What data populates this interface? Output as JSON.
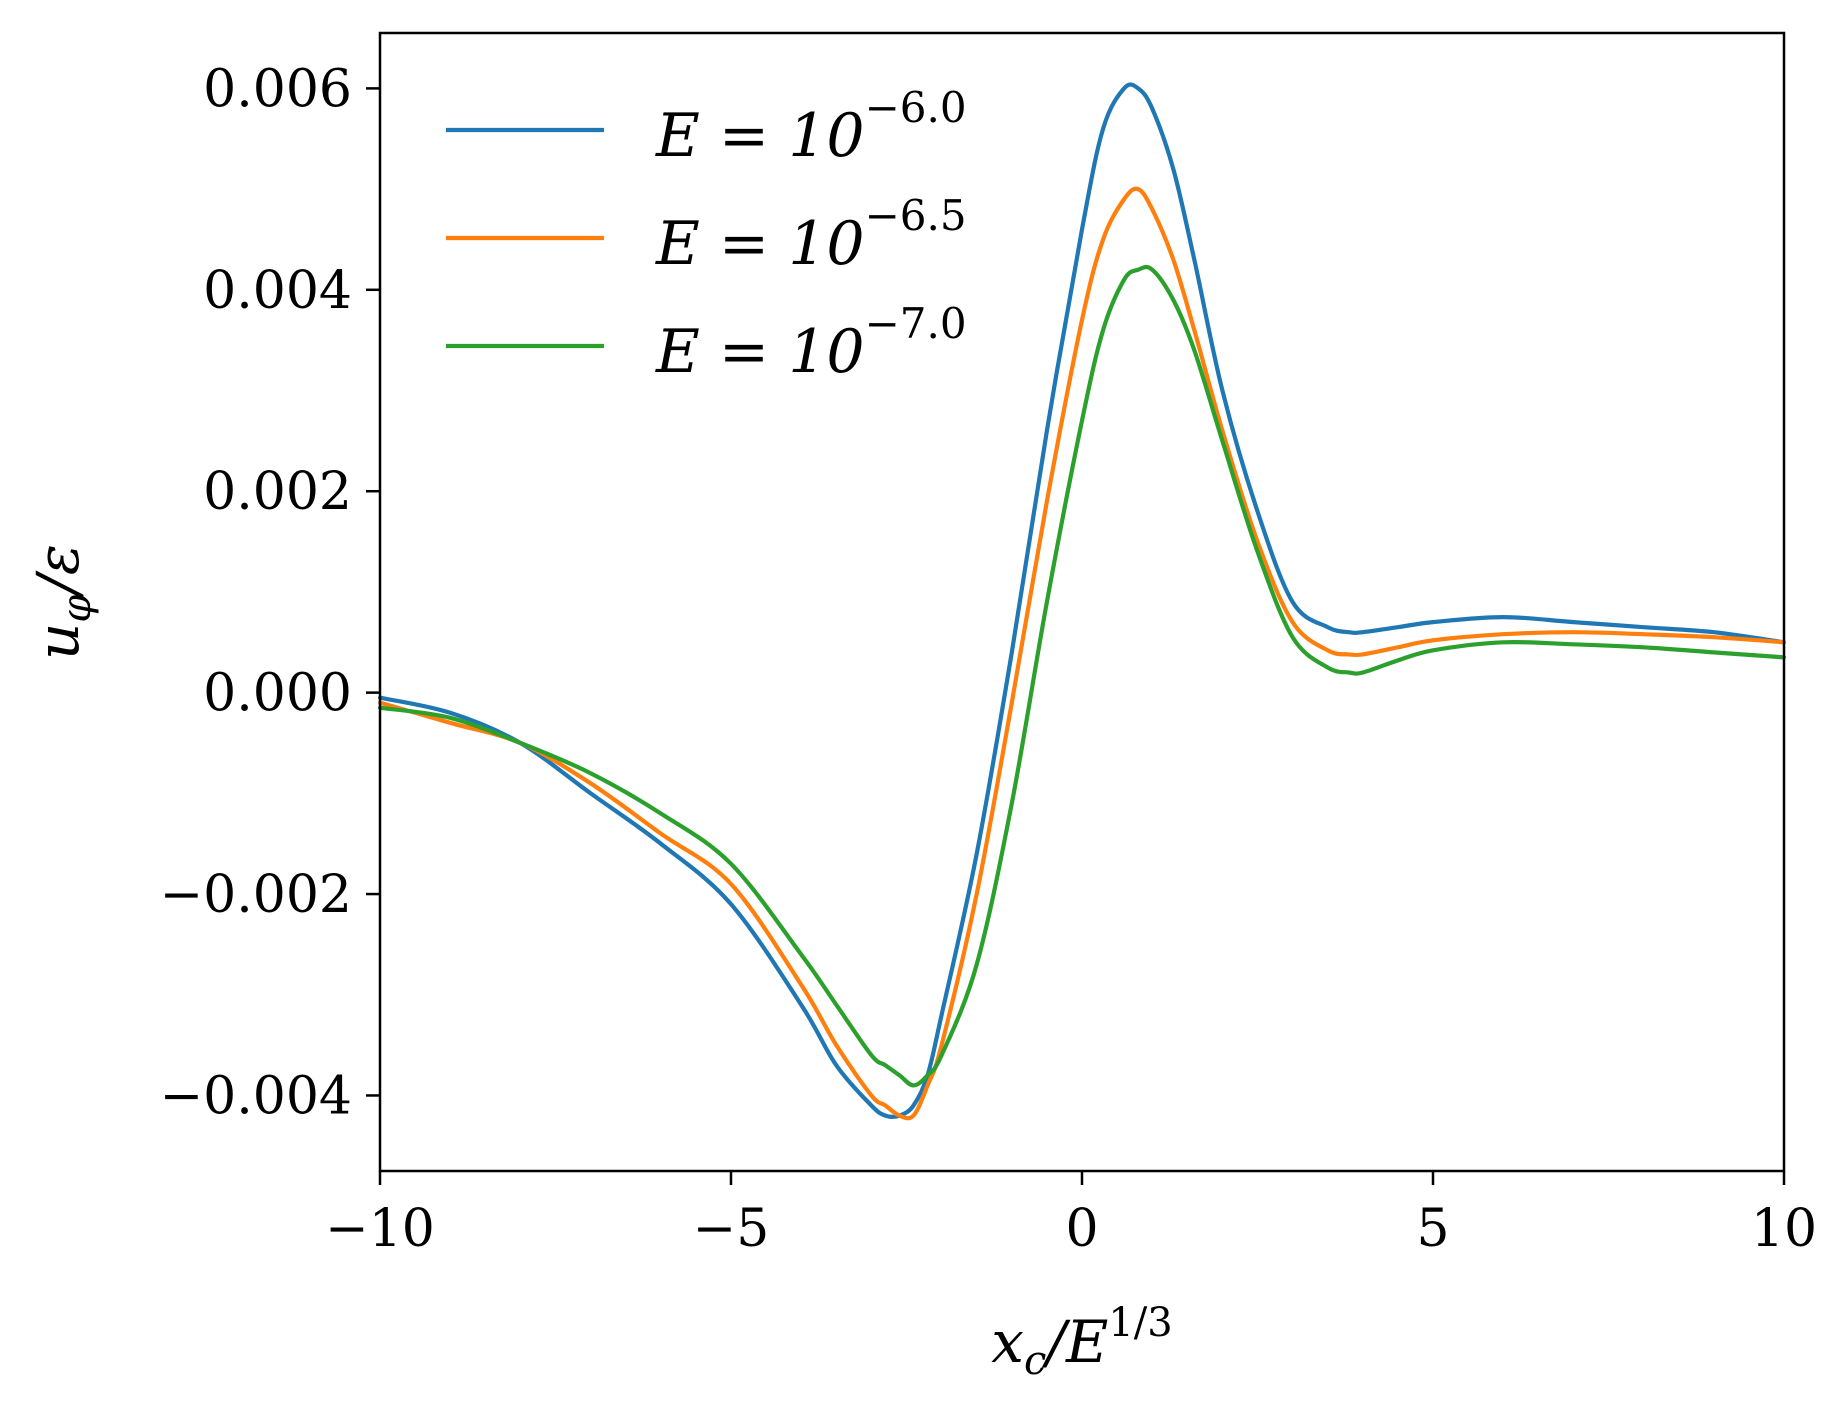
{
  "chart_data": {
    "type": "line",
    "xlabel": "x_c/E^{1/3}",
    "xlabel_parts": {
      "base": "x",
      "sub": "c",
      "mid": "/E",
      "sup": "1/3"
    },
    "ylabel": "u_φ/ε",
    "ylabel_parts": {
      "base": "u",
      "sub": "φ",
      "rest": "/ε"
    },
    "xlim": [
      -10,
      10
    ],
    "ylim": [
      -0.00475,
      0.00655
    ],
    "x_ticks": [
      -10,
      -5,
      0,
      5,
      10
    ],
    "x_tick_labels": [
      "−10",
      "−5",
      "0",
      "5",
      "10"
    ],
    "y_ticks": [
      -0.004,
      -0.002,
      0.0,
      0.002,
      0.004,
      0.006
    ],
    "y_tick_labels": [
      "−0.004",
      "−0.002",
      "0.000",
      "0.002",
      "0.004",
      "0.006"
    ],
    "grid": false,
    "legend_position": "top-left",
    "series": [
      {
        "name": "E = 10^{−6.0}",
        "legend_base": "E = 10",
        "legend_exp": "−6.0",
        "color": "#1f77b4",
        "x": [
          -10,
          -9,
          -8,
          -7,
          -6,
          -5,
          -4,
          -3.5,
          -3,
          -2.8,
          -2.6,
          -2.4,
          -2.2,
          -2,
          -1.5,
          -1,
          -0.5,
          0,
          0.3,
          0.6,
          0.8,
          1,
          1.3,
          1.6,
          2,
          2.5,
          3,
          3.5,
          3.8,
          4,
          4.5,
          5,
          6,
          7,
          8,
          9,
          10
        ],
        "y": [
          -5e-05,
          -0.0002,
          -0.0005,
          -0.001,
          -0.0015,
          -0.0021,
          -0.0031,
          -0.0037,
          -0.0041,
          -0.0042,
          -0.0042,
          -0.0041,
          -0.0038,
          -0.0032,
          -0.0016,
          0.0004,
          0.0026,
          0.0046,
          0.0056,
          0.006,
          0.006,
          0.0058,
          0.0052,
          0.0043,
          0.003,
          0.0018,
          0.0009,
          0.00065,
          0.0006,
          0.0006,
          0.00065,
          0.0007,
          0.00075,
          0.0007,
          0.00065,
          0.0006,
          0.0005
        ]
      },
      {
        "name": "E = 10^{−6.5}",
        "legend_base": "E = 10",
        "legend_exp": "−6.5",
        "color": "#ff7f0e",
        "x": [
          -10,
          -9,
          -8,
          -7,
          -6,
          -5,
          -4,
          -3.5,
          -3,
          -2.8,
          -2.6,
          -2.4,
          -2.2,
          -2,
          -1.5,
          -1,
          -0.5,
          0,
          0.3,
          0.6,
          0.8,
          1,
          1.3,
          1.6,
          2,
          2.5,
          3,
          3.5,
          3.8,
          4,
          4.5,
          5,
          6,
          7,
          8,
          9,
          10
        ],
        "y": [
          -0.0001,
          -0.0003,
          -0.0005,
          -0.0009,
          -0.0014,
          -0.0019,
          -0.0029,
          -0.0035,
          -0.004,
          -0.0041,
          -0.0042,
          -0.0042,
          -0.0039,
          -0.0035,
          -0.002,
          -0.0001,
          0.0019,
          0.0037,
          0.0045,
          0.0049,
          0.005,
          0.0048,
          0.0043,
          0.0036,
          0.0026,
          0.0015,
          0.0007,
          0.00042,
          0.00038,
          0.00038,
          0.00045,
          0.00052,
          0.00058,
          0.0006,
          0.00058,
          0.00055,
          0.0005
        ]
      },
      {
        "name": "E = 10^{−7.0}",
        "legend_base": "E = 10",
        "legend_exp": "−7.0",
        "color": "#2ca02c",
        "x": [
          -10,
          -9,
          -8,
          -7,
          -6,
          -5,
          -4,
          -3.5,
          -3,
          -2.8,
          -2.6,
          -2.4,
          -2.2,
          -2,
          -1.5,
          -1,
          -0.5,
          0,
          0.3,
          0.6,
          0.8,
          1,
          1.3,
          1.6,
          2,
          2.5,
          3,
          3.5,
          3.8,
          4,
          4.5,
          5,
          6,
          7,
          8,
          9,
          10
        ],
        "y": [
          -0.00015,
          -0.00025,
          -0.0005,
          -0.0008,
          -0.0012,
          -0.0017,
          -0.0026,
          -0.0031,
          -0.0036,
          -0.0037,
          -0.0038,
          -0.0039,
          -0.0038,
          -0.0036,
          -0.0027,
          -0.0011,
          0.0009,
          0.0027,
          0.0036,
          0.0041,
          0.0042,
          0.0042,
          0.0039,
          0.0034,
          0.0025,
          0.0014,
          0.00055,
          0.00025,
          0.0002,
          0.0002,
          0.00032,
          0.00042,
          0.0005,
          0.00048,
          0.00045,
          0.0004,
          0.00035
        ]
      }
    ]
  }
}
